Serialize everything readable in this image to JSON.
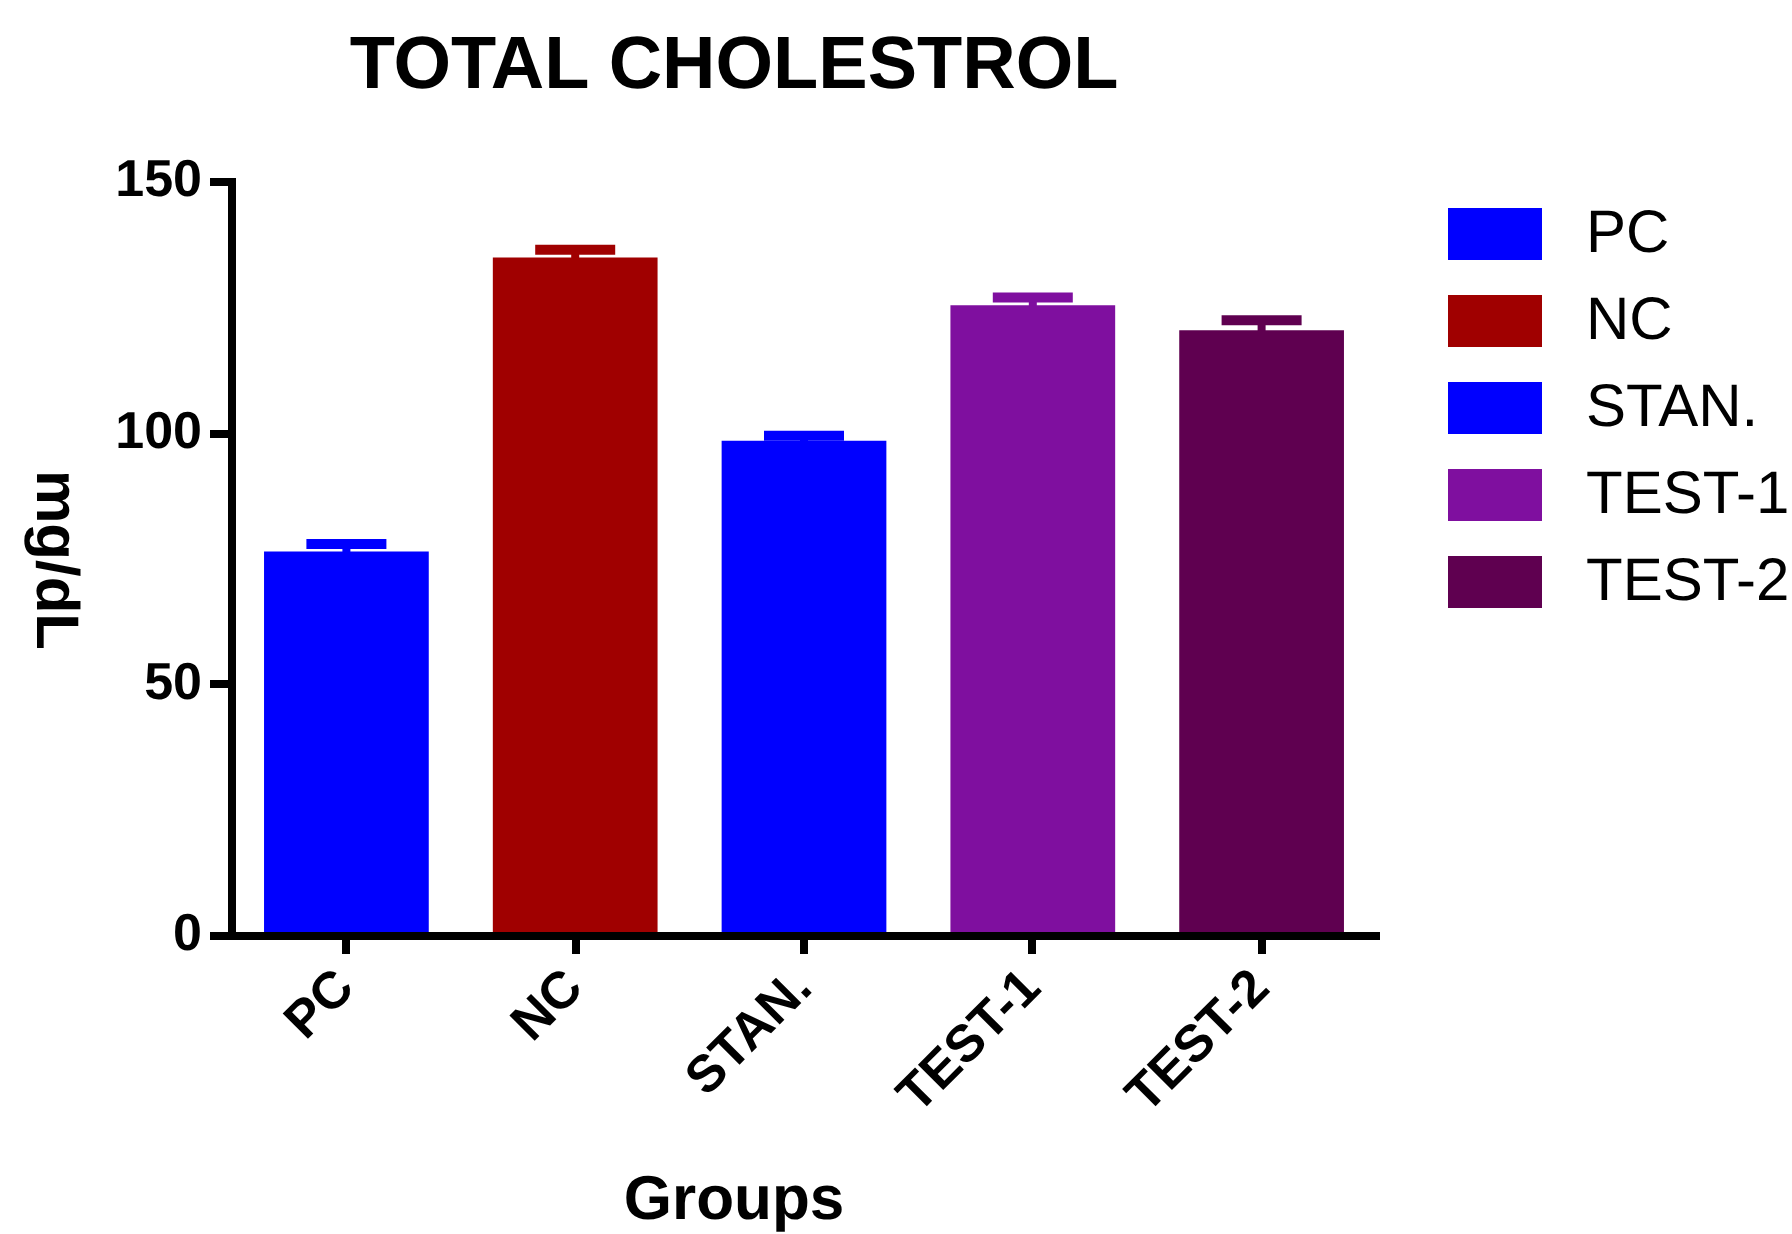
{
  "chart_data": {
    "type": "bar",
    "title": "TOTAL CHOLESTROL",
    "xlabel": "Groups",
    "ylabel": "mg/dL",
    "categories": [
      "PC",
      "NC",
      "STAN.",
      "TEST-1",
      "TEST-2"
    ],
    "series": [
      {
        "name": "PC",
        "color": "#0000ff",
        "values": [
          76.5,
          null,
          null,
          null,
          null
        ],
        "errors": [
          1.5,
          null,
          null,
          null,
          null
        ]
      },
      {
        "name": "NC",
        "color": "#a00000",
        "values": [
          null,
          135,
          null,
          null,
          null
        ],
        "errors": [
          null,
          1.5,
          null,
          null,
          null
        ]
      },
      {
        "name": "STAN.",
        "color": "#0000ff",
        "values": [
          null,
          null,
          98.5,
          null,
          null
        ],
        "errors": [
          null,
          null,
          1,
          null,
          null
        ]
      },
      {
        "name": "TEST-1",
        "color": "#7f0f9f",
        "values": [
          null,
          null,
          null,
          125.5,
          null
        ],
        "errors": [
          null,
          null,
          null,
          1.5,
          null
        ]
      },
      {
        "name": "TEST-2",
        "color": "#5f0050",
        "values": [
          null,
          null,
          null,
          null,
          120.5
        ],
        "errors": [
          null,
          null,
          null,
          null,
          2
        ]
      }
    ],
    "ylim": [
      0,
      150
    ],
    "yticks": [
      0,
      50,
      100,
      150
    ],
    "legend": "top right"
  }
}
